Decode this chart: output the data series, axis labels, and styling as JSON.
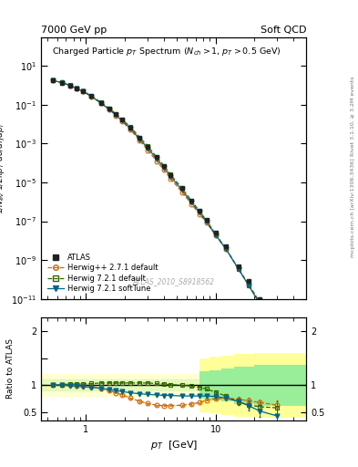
{
  "title_left": "7000 GeV pp",
  "title_right": "Soft QCD",
  "plot_title": "Charged Particle $p_T$ Spectrum ($N_{ch} > 1$, $p_T > 0.5$ GeV)",
  "ylabel_main": "$1/N_{ev}$ $1/2\\pi p_T$ $d\\sigma/d\\eta dp_T$",
  "ylabel_ratio": "Ratio to ATLAS",
  "xlabel": "$p_T$  [GeV]",
  "watermark": "ATLAS_2010_S8918562",
  "side_text1": "Rivet 3.1.10, ≥ 3.2M events",
  "side_text2": "mcplots.cern.ch [arXiv:1306.3436]",
  "xlim": [
    0.45,
    50
  ],
  "ylim_main": [
    1e-11,
    300.0
  ],
  "ylim_ratio": [
    0.35,
    2.25
  ],
  "atlas_pt": [
    0.55,
    0.65,
    0.75,
    0.85,
    0.95,
    1.1,
    1.3,
    1.5,
    1.7,
    1.9,
    2.2,
    2.6,
    3.0,
    3.5,
    4.0,
    4.5,
    5.5,
    6.5,
    7.5,
    8.5,
    10.0,
    12.0,
    15.0,
    18.0,
    22.0,
    30.0
  ],
  "atlas_val": [
    1.8,
    1.4,
    1.0,
    0.7,
    0.5,
    0.28,
    0.13,
    0.065,
    0.033,
    0.017,
    0.007,
    0.002,
    0.0007,
    0.0002,
    7e-05,
    2.5e-05,
    5e-06,
    1.2e-06,
    3.5e-07,
    1.2e-07,
    2.5e-08,
    5e-09,
    5e-10,
    8e-11,
    1e-11,
    5e-13
  ],
  "atlas_errlo": [
    0.05,
    0.04,
    0.03,
    0.025,
    0.018,
    0.01,
    0.005,
    0.003,
    0.0015,
    0.0008,
    0.00035,
    0.0001,
    3.5e-05,
    1.1e-05,
    4e-06,
    1.5e-06,
    3.2e-07,
    8e-08,
    2.8e-08,
    9e-09,
    2e-09,
    4e-10,
    5e-11,
    8e-12,
    1.5e-12,
    8e-14
  ],
  "atlas_errhi": [
    0.05,
    0.04,
    0.03,
    0.025,
    0.018,
    0.01,
    0.005,
    0.003,
    0.0015,
    0.0008,
    0.00035,
    0.0001,
    3.5e-05,
    1.1e-05,
    4e-06,
    1.5e-06,
    3.2e-07,
    8e-08,
    2.8e-08,
    9e-09,
    2e-09,
    4e-10,
    5e-11,
    8e-12,
    1.5e-12,
    8e-14
  ],
  "herwig_pp_pt": [
    0.55,
    0.65,
    0.75,
    0.85,
    0.95,
    1.1,
    1.3,
    1.5,
    1.7,
    1.9,
    2.2,
    2.6,
    3.0,
    3.5,
    4.0,
    4.5,
    5.5,
    6.5,
    7.5,
    8.5,
    10.0,
    12.0,
    15.0,
    18.0,
    22.0,
    30.0
  ],
  "herwig_pp_ratio": [
    1.01,
    1.01,
    1.0,
    0.99,
    0.98,
    0.97,
    0.94,
    0.9,
    0.86,
    0.82,
    0.76,
    0.7,
    0.66,
    0.63,
    0.62,
    0.62,
    0.63,
    0.65,
    0.68,
    0.72,
    0.75,
    0.76,
    0.74,
    0.71,
    0.68,
    0.63
  ],
  "herwig72_pt": [
    0.55,
    0.65,
    0.75,
    0.85,
    0.95,
    1.1,
    1.3,
    1.5,
    1.7,
    1.9,
    2.2,
    2.6,
    3.0,
    3.5,
    4.0,
    4.5,
    5.5,
    6.5,
    7.5,
    8.5,
    10.0,
    12.0,
    15.0,
    18.0,
    22.0,
    30.0
  ],
  "herwig72_ratio": [
    1.0,
    1.01,
    1.02,
    1.02,
    1.02,
    1.03,
    1.04,
    1.04,
    1.04,
    1.04,
    1.04,
    1.04,
    1.04,
    1.03,
    1.02,
    1.01,
    1.0,
    0.98,
    0.96,
    0.93,
    0.87,
    0.8,
    0.69,
    0.63,
    0.6,
    0.58
  ],
  "herwig72s_pt": [
    0.55,
    0.65,
    0.75,
    0.85,
    0.95,
    1.1,
    1.3,
    1.5,
    1.7,
    1.9,
    2.2,
    2.6,
    3.0,
    3.5,
    4.0,
    4.5,
    5.5,
    6.5,
    7.5,
    8.5,
    10.0,
    12.0,
    15.0,
    18.0,
    22.0,
    30.0
  ],
  "herwig72s_ratio": [
    1.01,
    1.0,
    0.99,
    0.98,
    0.97,
    0.96,
    0.94,
    0.92,
    0.9,
    0.88,
    0.86,
    0.84,
    0.83,
    0.82,
    0.81,
    0.81,
    0.8,
    0.8,
    0.8,
    0.8,
    0.79,
    0.76,
    0.7,
    0.62,
    0.52,
    0.43
  ],
  "herwig_pp_errlo": [
    0.01,
    0.01,
    0.01,
    0.01,
    0.01,
    0.01,
    0.01,
    0.01,
    0.01,
    0.01,
    0.01,
    0.01,
    0.01,
    0.01,
    0.01,
    0.01,
    0.01,
    0.01,
    0.01,
    0.01,
    0.02,
    0.03,
    0.04,
    0.05,
    0.06,
    0.08
  ],
  "herwig_pp_errhi": [
    0.01,
    0.01,
    0.01,
    0.01,
    0.01,
    0.01,
    0.01,
    0.01,
    0.01,
    0.01,
    0.01,
    0.01,
    0.01,
    0.01,
    0.01,
    0.01,
    0.01,
    0.01,
    0.01,
    0.01,
    0.02,
    0.03,
    0.04,
    0.05,
    0.06,
    0.08
  ],
  "herwig72_errlo": [
    0.01,
    0.01,
    0.01,
    0.01,
    0.01,
    0.01,
    0.01,
    0.01,
    0.01,
    0.01,
    0.01,
    0.01,
    0.01,
    0.01,
    0.01,
    0.01,
    0.01,
    0.01,
    0.01,
    0.01,
    0.02,
    0.03,
    0.05,
    0.07,
    0.09,
    0.12
  ],
  "herwig72_errhi": [
    0.01,
    0.01,
    0.01,
    0.01,
    0.01,
    0.01,
    0.01,
    0.01,
    0.01,
    0.01,
    0.01,
    0.01,
    0.01,
    0.01,
    0.01,
    0.01,
    0.01,
    0.01,
    0.01,
    0.01,
    0.02,
    0.03,
    0.05,
    0.07,
    0.09,
    0.12
  ],
  "herwig72s_errlo": [
    0.01,
    0.01,
    0.01,
    0.01,
    0.01,
    0.01,
    0.01,
    0.01,
    0.01,
    0.01,
    0.01,
    0.01,
    0.01,
    0.01,
    0.01,
    0.01,
    0.01,
    0.01,
    0.01,
    0.01,
    0.02,
    0.04,
    0.06,
    0.09,
    0.1,
    0.15
  ],
  "herwig72s_errhi": [
    0.01,
    0.01,
    0.01,
    0.01,
    0.01,
    0.01,
    0.01,
    0.01,
    0.01,
    0.01,
    0.01,
    0.01,
    0.01,
    0.01,
    0.01,
    0.01,
    0.01,
    0.01,
    0.01,
    0.01,
    0.02,
    0.04,
    0.06,
    0.09,
    0.1,
    0.15
  ],
  "atlas_color": "#222222",
  "herwig_pp_color": "#cc6600",
  "herwig72_color": "#336600",
  "herwig72s_color": "#006688",
  "band_yellow": "#ffff99",
  "band_green": "#99ee99",
  "band_steps_x": [
    7.5,
    9.0,
    11.0,
    14.0,
    20.0,
    50.0
  ],
  "band_yellow_lo": [
    0.5,
    0.48,
    0.45,
    0.42,
    0.4,
    0.4
  ],
  "band_yellow_hi": [
    1.5,
    1.52,
    1.55,
    1.58,
    1.6,
    1.6
  ],
  "band_green_lo": [
    0.75,
    0.72,
    0.7,
    0.65,
    0.62,
    0.6
  ],
  "band_green_hi": [
    1.25,
    1.28,
    1.3,
    1.35,
    1.38,
    1.4
  ]
}
